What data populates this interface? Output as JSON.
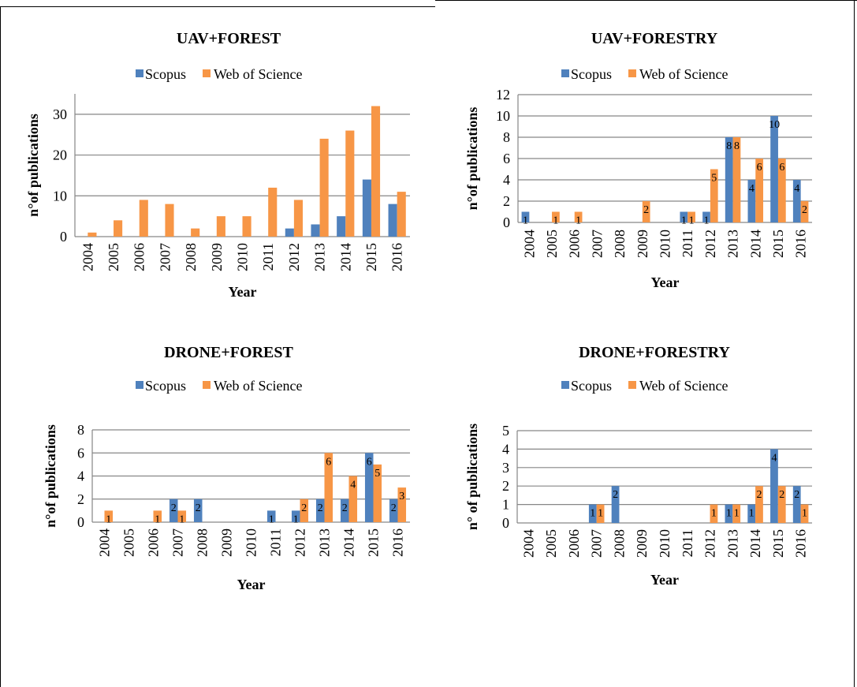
{
  "colors": {
    "scopus": "#4f81bd",
    "wos": "#f79646",
    "grid": "#868686",
    "axis": "#868686"
  },
  "chart_data": [
    {
      "type": "bar",
      "title": "UAV+FOREST",
      "xlabel": "Year",
      "ylabel": "n°of publications",
      "ylim": [
        0,
        35
      ],
      "yticks": [
        0,
        10,
        20,
        30
      ],
      "grid": true,
      "legend": "top",
      "data_labels": false,
      "categories": [
        "2004",
        "2005",
        "2006",
        "2007",
        "2008",
        "2009",
        "2010",
        "2011",
        "2012",
        "2013",
        "2014",
        "2015",
        "2016"
      ],
      "series": [
        {
          "name": "Scopus",
          "values": [
            0,
            0,
            0,
            0,
            0,
            0,
            0,
            0,
            2,
            3,
            5,
            14,
            8
          ]
        },
        {
          "name": "Web of Science",
          "values": [
            1,
            4,
            9,
            8,
            2,
            5,
            5,
            12,
            9,
            24,
            26,
            32,
            11
          ]
        }
      ]
    },
    {
      "type": "bar",
      "title": "UAV+FORESTRY",
      "xlabel": "Year",
      "ylabel": "n°of  publications",
      "ylim": [
        0,
        12
      ],
      "yticks": [
        0,
        2,
        4,
        6,
        8,
        10,
        12
      ],
      "grid": true,
      "legend": "top",
      "data_labels": true,
      "categories": [
        "2004",
        "2005",
        "2006",
        "2007",
        "2008",
        "2009",
        "2010",
        "2011",
        "2012",
        "2013",
        "2014",
        "2015",
        "2016"
      ],
      "series": [
        {
          "name": "Scopus",
          "values": [
            1,
            0,
            0,
            0,
            0,
            0,
            0,
            1,
            1,
            8,
            4,
            10,
            4
          ]
        },
        {
          "name": "Web of Science",
          "values": [
            0,
            1,
            1,
            0,
            0,
            2,
            0,
            1,
            5,
            8,
            6,
            6,
            2
          ]
        }
      ]
    },
    {
      "type": "bar",
      "title": "DRONE+FOREST",
      "xlabel": "Year",
      "ylabel": "n°of publications",
      "ylim": [
        0,
        8
      ],
      "yticks": [
        0,
        2,
        4,
        6,
        8
      ],
      "grid": true,
      "legend": "top",
      "data_labels": true,
      "categories": [
        "2004",
        "2005",
        "2006",
        "2007",
        "2008",
        "2009",
        "2010",
        "2011",
        "2012",
        "2013",
        "2014",
        "2015",
        "2016"
      ],
      "series": [
        {
          "name": "Scopus",
          "values": [
            0,
            0,
            0,
            2,
            2,
            0,
            0,
            1,
            1,
            2,
            2,
            6,
            2
          ]
        },
        {
          "name": "Web of Science",
          "values": [
            1,
            0,
            1,
            1,
            0,
            0,
            0,
            0,
            2,
            6,
            4,
            5,
            3
          ]
        }
      ]
    },
    {
      "type": "bar",
      "title": "DRONE+FORESTRY",
      "xlabel": "Year",
      "ylabel": "n° of publications",
      "ylim": [
        0,
        5
      ],
      "yticks": [
        0,
        1,
        2,
        3,
        4,
        5
      ],
      "grid": true,
      "legend": "top",
      "data_labels": true,
      "categories": [
        "2004",
        "2005",
        "2006",
        "2007",
        "2008",
        "2009",
        "2010",
        "2011",
        "2012",
        "2013",
        "2014",
        "2015",
        "2016"
      ],
      "series": [
        {
          "name": "Scopus",
          "values": [
            0,
            0,
            0,
            1,
            2,
            0,
            0,
            0,
            0,
            1,
            1,
            4,
            2
          ]
        },
        {
          "name": "Web of Science",
          "values": [
            0,
            0,
            0,
            1,
            0,
            0,
            0,
            0,
            1,
            1,
            2,
            2,
            1
          ]
        }
      ]
    }
  ]
}
